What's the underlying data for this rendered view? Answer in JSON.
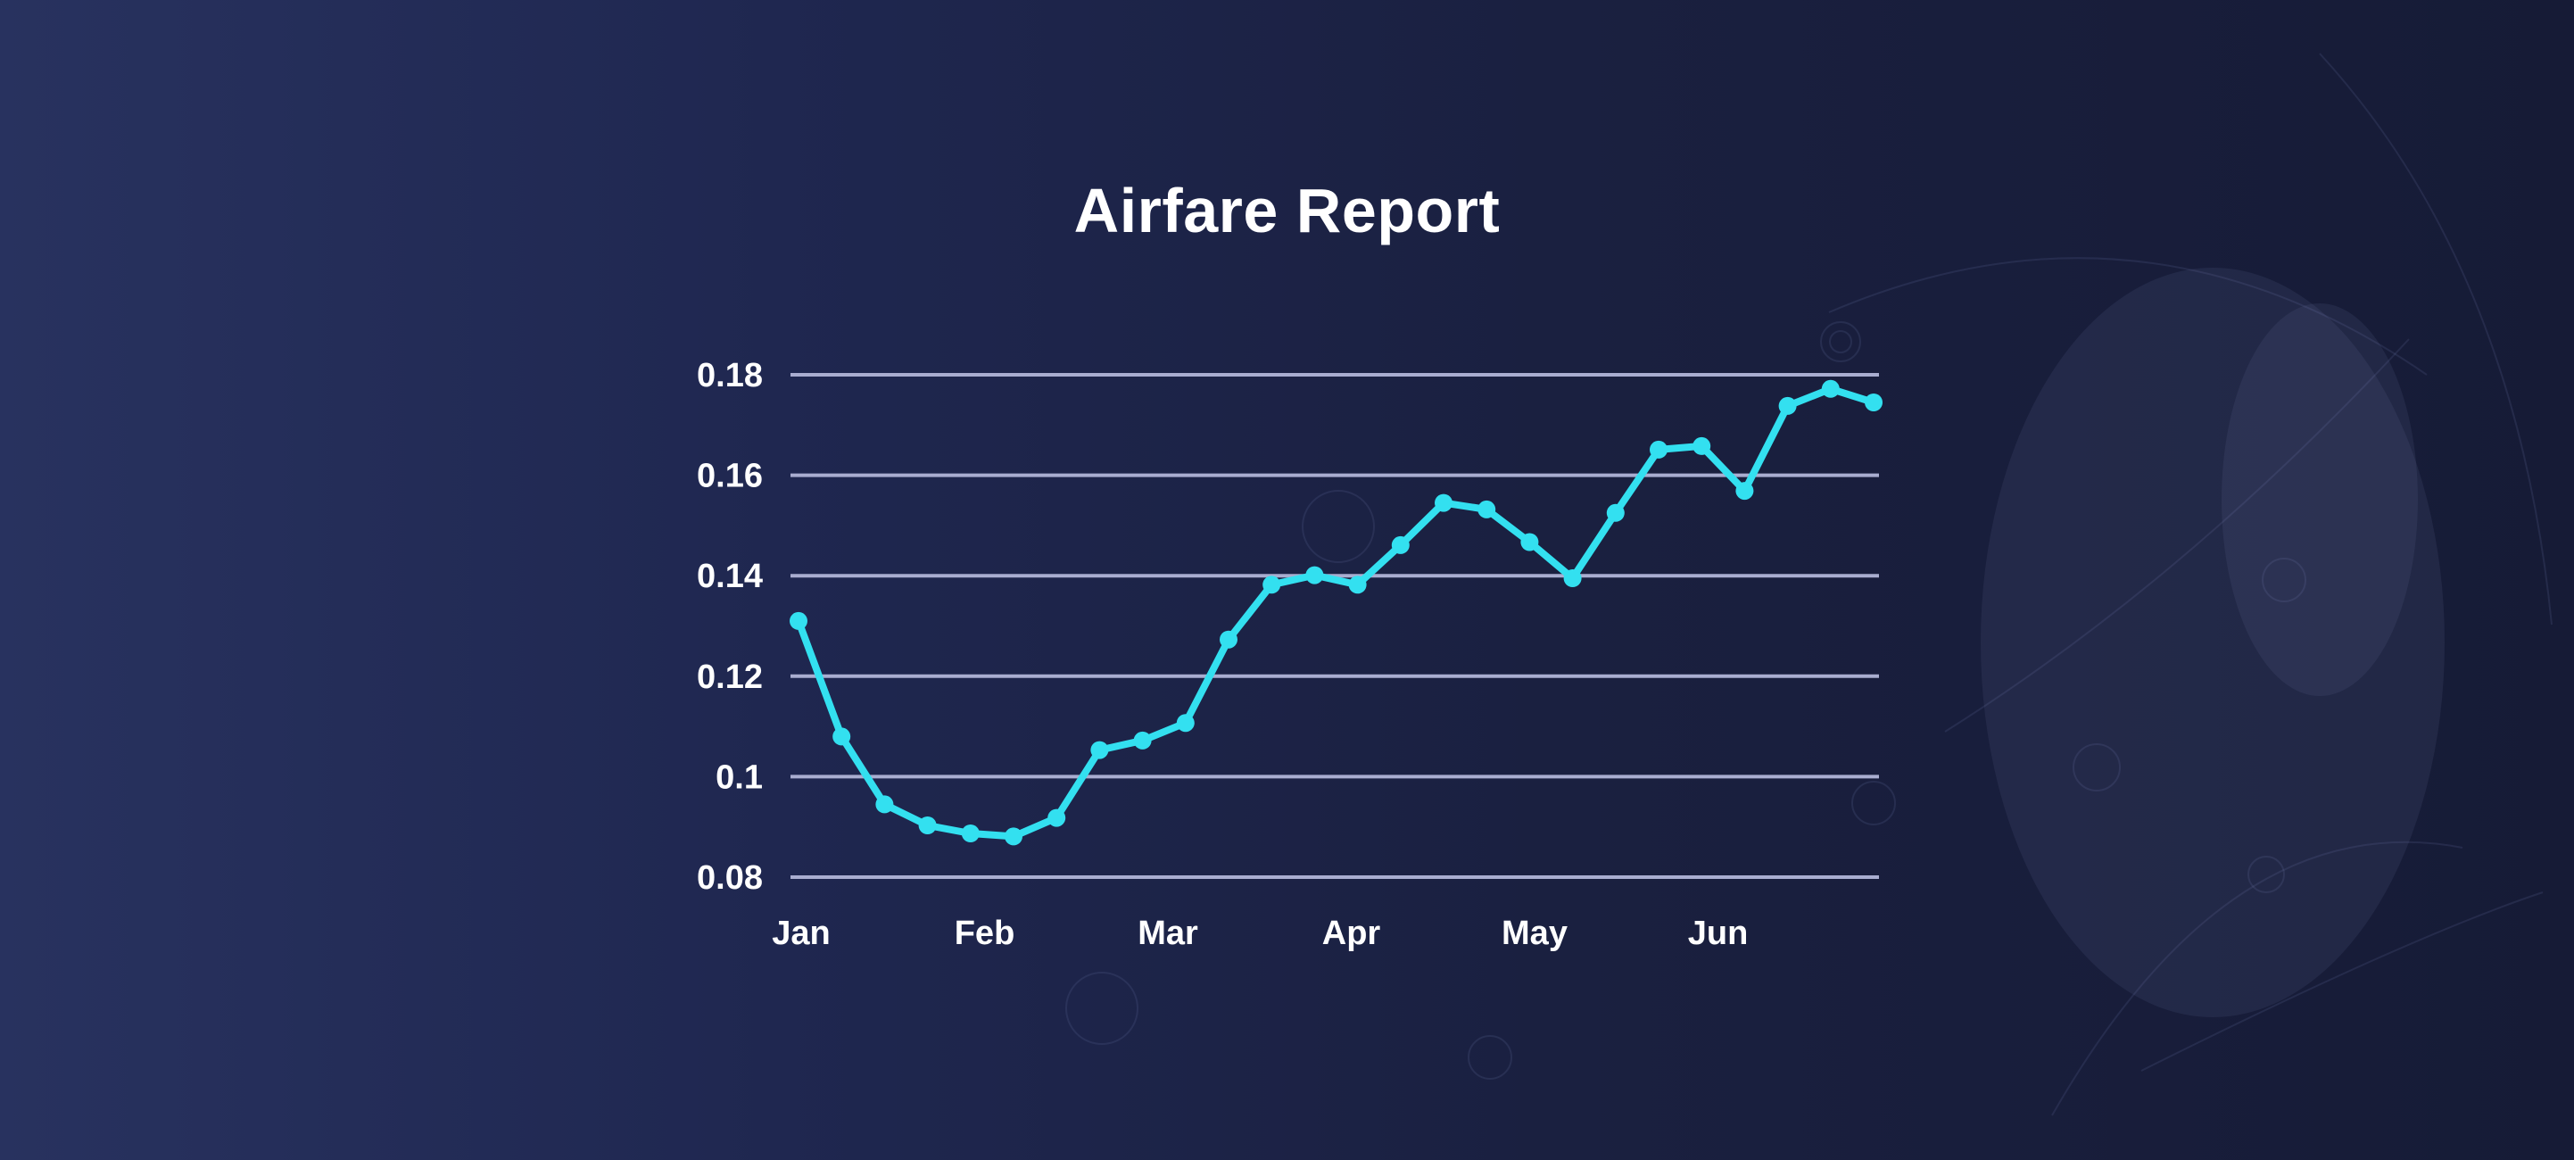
{
  "title": "Airfare Report",
  "colors": {
    "line": "#33e0f0",
    "grid": "#a9add0",
    "text": "#ffffff"
  },
  "chart_data": {
    "type": "line",
    "title": "Airfare Report",
    "xlabel": "",
    "ylabel": "",
    "x_tick_labels": [
      "Jan",
      "Feb",
      "Mar",
      "Apr",
      "May",
      "Jun"
    ],
    "y_ticks": [
      "0.08",
      "0.1",
      "0.12",
      "0.14",
      "0.16",
      "0.18"
    ],
    "ylim": [
      0.08,
      0.18
    ],
    "grid": "horizontal",
    "legend": "none",
    "series": [
      {
        "values": [
          0.131,
          0.108,
          0.0945,
          0.0903,
          0.0887,
          0.0881,
          0.0918,
          0.1053,
          0.1072,
          0.1107,
          0.1273,
          0.1382,
          0.1401,
          0.1382,
          0.1461,
          0.1545,
          0.1532,
          0.1467,
          0.1395,
          0.1525,
          0.1651,
          0.1658,
          0.1569,
          0.1738,
          0.1772,
          0.1745
        ]
      }
    ]
  }
}
